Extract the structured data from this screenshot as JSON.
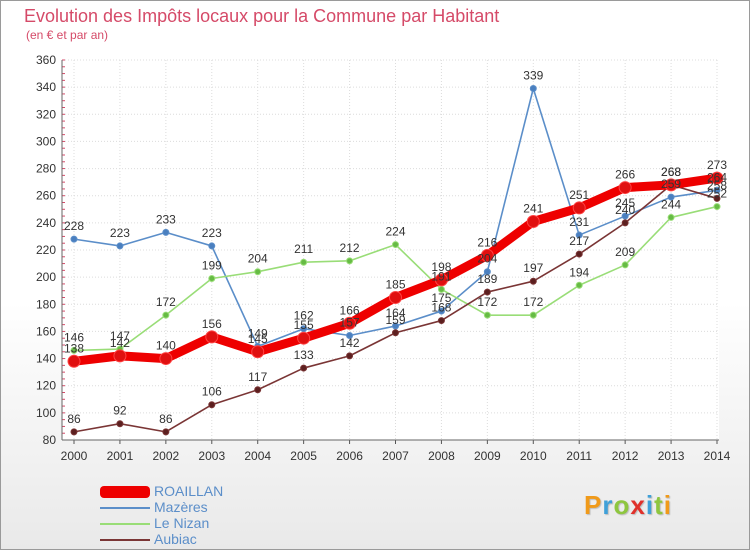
{
  "title": "Evolution des Impôts locaux pour la Commune par Habitant",
  "subtitle": "(en € et par an)",
  "logo": {
    "text": "Proxiti",
    "letters": [
      {
        "ch": "P",
        "color": "#f09a1a"
      },
      {
        "ch": "r",
        "color": "#3fa0d8"
      },
      {
        "ch": "o",
        "color": "#8ec63f"
      },
      {
        "ch": "x",
        "color": "#e0312b"
      },
      {
        "ch": "i",
        "color": "#3fa0d8"
      },
      {
        "ch": "t",
        "color": "#8ec63f"
      },
      {
        "ch": "i",
        "color": "#f09a1a"
      }
    ]
  },
  "chart_data": {
    "type": "line",
    "title": "Evolution des Impôts locaux pour la Commune par Habitant",
    "subtitle": "(en € et par an)",
    "xlabel": "",
    "ylabel": "",
    "x": [
      "2000",
      "2001",
      "2002",
      "2003",
      "2004",
      "2005",
      "2006",
      "2007",
      "2008",
      "2009",
      "2010",
      "2011",
      "2012",
      "2013",
      "2014"
    ],
    "ylim": [
      80,
      360
    ],
    "yticks": [
      80,
      100,
      120,
      140,
      160,
      180,
      200,
      220,
      240,
      260,
      280,
      300,
      320,
      340,
      360
    ],
    "grid": true,
    "legend_position": "bottom-left",
    "series": [
      {
        "name": "ROAILLAN",
        "color": "#ee0000",
        "marker": "#e01010",
        "values": [
          138,
          142,
          140,
          156,
          145,
          155,
          166,
          185,
          198,
          216,
          241,
          251,
          266,
          268,
          273
        ],
        "labels": [
          "138",
          "142",
          "140",
          "156",
          "145",
          "155",
          "166",
          "185",
          "198",
          "216",
          "241",
          "251",
          "266",
          "268",
          "273"
        ],
        "emphasis": true
      },
      {
        "name": "Mazères",
        "color": "#5b8ec9",
        "marker": "#4a7fbf",
        "values": [
          228,
          223,
          233,
          223,
          149,
          162,
          157,
          164,
          175,
          204,
          339,
          231,
          245,
          259,
          264
        ],
        "labels": [
          "228",
          "223",
          "233",
          "223",
          "149",
          "162",
          "157",
          "164",
          "175",
          "204",
          "339",
          "231",
          "245",
          "259",
          "264"
        ]
      },
      {
        "name": "Le Nizan",
        "color": "#99dd77",
        "marker": "#66bb44",
        "values": [
          146,
          147,
          172,
          199,
          204,
          211,
          212,
          224,
          191,
          172,
          172,
          194,
          209,
          244,
          252
        ],
        "labels": [
          "146",
          "147",
          "172",
          "199",
          "204",
          "211",
          "212",
          "224",
          "191",
          "172",
          "172",
          "194",
          "209",
          "244",
          "252"
        ]
      },
      {
        "name": "Aubiac",
        "color": "#7a3535",
        "marker": "#5c1f1f",
        "values": [
          86,
          92,
          86,
          106,
          117,
          133,
          142,
          159,
          168,
          189,
          197,
          217,
          240,
          268,
          258
        ],
        "labels": [
          "86",
          "92",
          "86",
          "106",
          "117",
          "133",
          "142",
          "159",
          "168",
          "189",
          "197",
          "217",
          "240",
          "268",
          "258"
        ]
      }
    ]
  },
  "legend": {
    "items": [
      {
        "label": "ROAILLAN"
      },
      {
        "label": "Mazères"
      },
      {
        "label": "Le Nizan"
      },
      {
        "label": "Aubiac"
      }
    ]
  }
}
